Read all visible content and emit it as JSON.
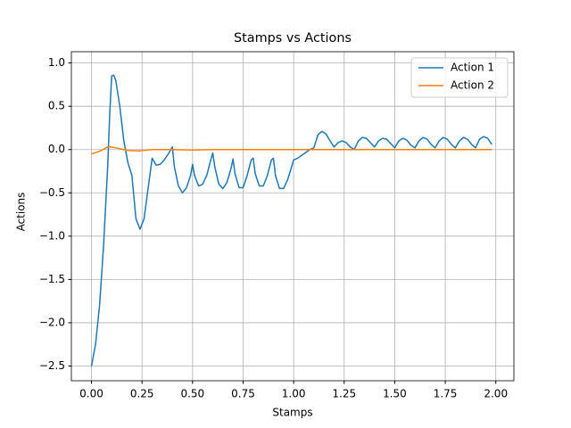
{
  "chart_data": {
    "type": "line",
    "title": "Stamps vs Actions",
    "xlabel": "Stamps",
    "ylabel": "Actions",
    "xlim": [
      -0.0995,
      2.0895
    ],
    "ylim": [
      -2.67,
      1.13
    ],
    "xticks": [
      {
        "value": 0,
        "label": "0.00"
      },
      {
        "value": 0.25,
        "label": "0.25"
      },
      {
        "value": 0.5,
        "label": "0.50"
      },
      {
        "value": 0.75,
        "label": "0.75"
      },
      {
        "value": 1,
        "label": "1.00"
      },
      {
        "value": 1.25,
        "label": "1.25"
      },
      {
        "value": 1.5,
        "label": "1.50"
      },
      {
        "value": 1.75,
        "label": "1.75"
      },
      {
        "value": 2,
        "label": "2.00"
      }
    ],
    "yticks": [
      {
        "value": -2.5,
        "label": "−2.5"
      },
      {
        "value": -2,
        "label": "−2.0"
      },
      {
        "value": -1.5,
        "label": "−1.5"
      },
      {
        "value": -1,
        "label": "−1.0"
      },
      {
        "value": -0.5,
        "label": "−0.5"
      },
      {
        "value": 0,
        "label": "0.0"
      },
      {
        "value": 0.5,
        "label": "0.5"
      },
      {
        "value": 1,
        "label": "1.0"
      }
    ],
    "grid": true,
    "legend": "upper right",
    "series": [
      {
        "name": "Action 1",
        "color": "#1f77b4",
        "x": [
          0,
          0.02,
          0.04,
          0.06,
          0.08,
          0.09,
          0.1,
          0.11,
          0.12,
          0.14,
          0.16,
          0.18,
          0.2,
          0.21,
          0.22,
          0.24,
          0.26,
          0.28,
          0.3,
          0.32,
          0.34,
          0.36,
          0.38,
          0.4,
          0.41,
          0.43,
          0.45,
          0.47,
          0.49,
          0.5,
          0.51,
          0.53,
          0.55,
          0.57,
          0.59,
          0.6,
          0.61,
          0.63,
          0.65,
          0.67,
          0.69,
          0.7,
          0.71,
          0.73,
          0.75,
          0.77,
          0.79,
          0.8,
          0.81,
          0.83,
          0.85,
          0.87,
          0.89,
          0.9,
          0.91,
          0.93,
          0.95,
          0.97,
          0.99,
          1.0,
          1.02,
          1.05,
          1.08,
          1.1,
          1.12,
          1.14,
          1.16,
          1.18,
          1.2,
          1.22,
          1.24,
          1.26,
          1.28,
          1.3,
          1.32,
          1.34,
          1.36,
          1.38,
          1.4,
          1.42,
          1.44,
          1.46,
          1.48,
          1.5,
          1.52,
          1.54,
          1.56,
          1.58,
          1.6,
          1.62,
          1.64,
          1.66,
          1.68,
          1.7,
          1.72,
          1.74,
          1.76,
          1.78,
          1.8,
          1.82,
          1.84,
          1.86,
          1.88,
          1.9,
          1.92,
          1.94,
          1.96,
          1.98
        ],
        "values": [
          -2.5,
          -2.25,
          -1.8,
          -1.1,
          -0.2,
          0.4,
          0.85,
          0.86,
          0.8,
          0.5,
          0.1,
          -0.15,
          -0.3,
          -0.55,
          -0.8,
          -0.92,
          -0.8,
          -0.45,
          -0.1,
          -0.18,
          -0.17,
          -0.12,
          -0.05,
          0.03,
          -0.2,
          -0.42,
          -0.5,
          -0.44,
          -0.3,
          -0.17,
          -0.3,
          -0.42,
          -0.4,
          -0.3,
          -0.12,
          -0.04,
          -0.2,
          -0.4,
          -0.45,
          -0.38,
          -0.22,
          -0.11,
          -0.28,
          -0.44,
          -0.44,
          -0.3,
          -0.12,
          -0.1,
          -0.28,
          -0.42,
          -0.42,
          -0.3,
          -0.12,
          -0.1,
          -0.3,
          -0.45,
          -0.45,
          -0.35,
          -0.2,
          -0.12,
          -0.1,
          -0.05,
          0.0,
          0.02,
          0.17,
          0.21,
          0.18,
          0.1,
          0.03,
          0.08,
          0.1,
          0.08,
          0.03,
          0.0,
          0.1,
          0.14,
          0.13,
          0.08,
          0.03,
          0.1,
          0.13,
          0.12,
          0.07,
          0.02,
          0.1,
          0.13,
          0.11,
          0.05,
          0.02,
          0.1,
          0.14,
          0.12,
          0.06,
          0.02,
          0.1,
          0.14,
          0.12,
          0.06,
          0.02,
          0.1,
          0.14,
          0.12,
          0.06,
          0.02,
          0.12,
          0.15,
          0.13,
          0.06
        ]
      },
      {
        "name": "Action 2",
        "color": "#ff7f0e",
        "x": [
          0,
          0.04,
          0.08,
          0.1,
          0.14,
          0.18,
          0.24,
          0.3,
          0.4,
          0.5,
          0.6,
          1.0,
          1.5,
          1.98
        ],
        "values": [
          -0.05,
          -0.02,
          0.03,
          0.03,
          0.01,
          -0.01,
          -0.015,
          0.0,
          0.0,
          -0.005,
          0.0,
          0.0,
          0.0,
          0.0
        ]
      }
    ]
  }
}
